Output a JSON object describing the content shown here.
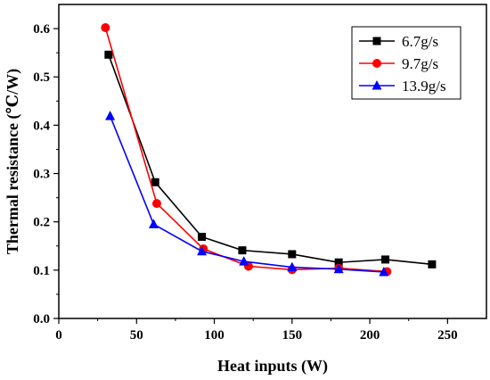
{
  "chart_data": {
    "type": "line",
    "title": "",
    "xlabel": "Heat inputs (W)",
    "ylabel": "Thermal resistance (℃/W)",
    "xlim": [
      0,
      275
    ],
    "ylim": [
      0,
      0.65
    ],
    "xticks": [
      0,
      50,
      100,
      150,
      200,
      250
    ],
    "yticks": [
      0.0,
      0.1,
      0.2,
      0.3,
      0.4,
      0.5,
      0.6
    ],
    "xtick_labels": [
      "0",
      "50",
      "100",
      "150",
      "200",
      "250"
    ],
    "ytick_labels": [
      "0.0",
      "0.1",
      "0.2",
      "0.3",
      "0.4",
      "0.5",
      "0.6"
    ],
    "grid": false,
    "legend_position": "top-right",
    "series": [
      {
        "name": "6.7g/s",
        "color": "#000000",
        "marker": "square",
        "x": [
          32,
          62,
          92,
          118,
          150,
          180,
          210,
          240
        ],
        "y": [
          0.546,
          0.282,
          0.169,
          0.141,
          0.133,
          0.116,
          0.122,
          0.112
        ]
      },
      {
        "name": "9.7g/s",
        "color": "#ff0000",
        "marker": "circle",
        "x": [
          30,
          63,
          93,
          122,
          150,
          180,
          211
        ],
        "y": [
          0.602,
          0.238,
          0.144,
          0.108,
          0.101,
          0.104,
          0.097
        ]
      },
      {
        "name": "13.9g/s",
        "color": "#0000ff",
        "marker": "triangle",
        "x": [
          33,
          61,
          92,
          119,
          150,
          180,
          209
        ],
        "y": [
          0.419,
          0.195,
          0.139,
          0.118,
          0.106,
          0.102,
          0.096
        ]
      }
    ]
  }
}
